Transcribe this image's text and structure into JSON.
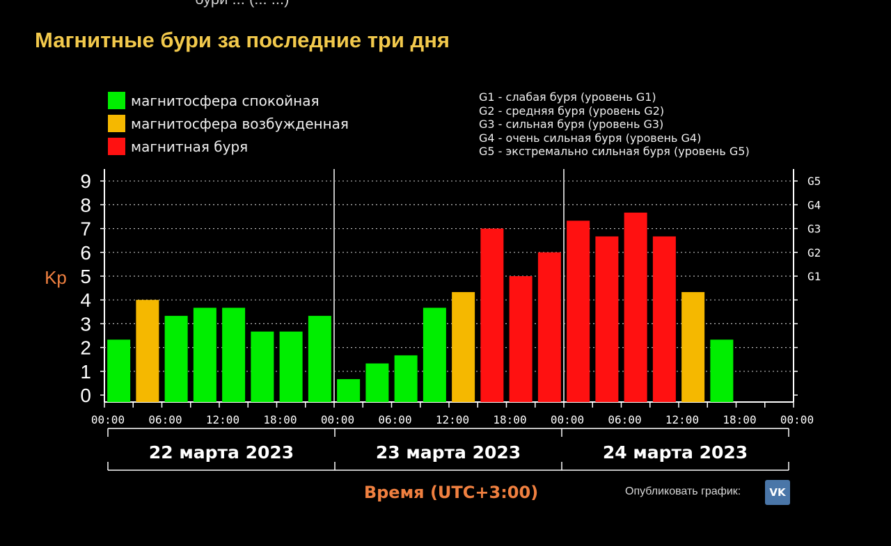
{
  "page": {
    "top_cut_text": "бури ... (... ...)",
    "title": "Магнитные бури за последние три дня"
  },
  "legend": [
    {
      "label": "магнитосфера спокойная",
      "color": "#00ee00"
    },
    {
      "label": "магнитосфера возбужденная",
      "color": "#f5b800"
    },
    {
      "label": "магнитная буря",
      "color": "#ff1111"
    }
  ],
  "levels": [
    "G1 - слабая буря (уровень G1)",
    "G2 - средняя буря (уровень G2)",
    "G3 - сильная буря (уровень G3)",
    "G4 - очень сильная буря (уровень G4)",
    "G5 - экстремально сильная буря (уровень G5)"
  ],
  "chart_data": {
    "type": "bar",
    "ylabel": "Kp",
    "xlabel": "Время (UTC+3:00)",
    "ylim": [
      0,
      9
    ],
    "yticks": [
      0,
      1,
      2,
      3,
      4,
      5,
      6,
      7,
      8,
      9
    ],
    "right_ticks": [
      {
        "value": 5,
        "label": "G1"
      },
      {
        "value": 6,
        "label": "G2"
      },
      {
        "value": 7,
        "label": "G3"
      },
      {
        "value": 8,
        "label": "G4"
      },
      {
        "value": 9,
        "label": "G5"
      }
    ],
    "xtick_labels": [
      "00:00",
      "06:00",
      "12:00",
      "18:00",
      "00:00",
      "06:00",
      "12:00",
      "18:00",
      "00:00",
      "06:00",
      "12:00",
      "18:00",
      "00:00"
    ],
    "days": [
      "22 марта 2023",
      "23 марта 2023",
      "24 марта 2023"
    ],
    "interval_hours": 3,
    "total_intervals": 24,
    "bars": [
      {
        "value": 2.33,
        "status": "quiet"
      },
      {
        "value": 4.0,
        "status": "active"
      },
      {
        "value": 3.33,
        "status": "quiet"
      },
      {
        "value": 3.67,
        "status": "quiet"
      },
      {
        "value": 3.67,
        "status": "quiet"
      },
      {
        "value": 2.67,
        "status": "quiet"
      },
      {
        "value": 2.67,
        "status": "quiet"
      },
      {
        "value": 3.33,
        "status": "quiet"
      },
      {
        "value": 0.67,
        "status": "quiet"
      },
      {
        "value": 1.33,
        "status": "quiet"
      },
      {
        "value": 1.67,
        "status": "quiet"
      },
      {
        "value": 3.67,
        "status": "quiet"
      },
      {
        "value": 4.33,
        "status": "active"
      },
      {
        "value": 7.0,
        "status": "storm"
      },
      {
        "value": 5.0,
        "status": "storm"
      },
      {
        "value": 6.0,
        "status": "storm"
      },
      {
        "value": 7.33,
        "status": "storm"
      },
      {
        "value": 6.67,
        "status": "storm"
      },
      {
        "value": 7.67,
        "status": "storm"
      },
      {
        "value": 6.67,
        "status": "storm"
      },
      {
        "value": 4.33,
        "status": "active"
      },
      {
        "value": 2.33,
        "status": "quiet"
      }
    ],
    "colors": {
      "quiet": "#00ee00",
      "active": "#f5b800",
      "storm": "#ff1111"
    }
  },
  "footer": {
    "publish_label": "Опубликовать график:",
    "vk_label": "VK"
  }
}
